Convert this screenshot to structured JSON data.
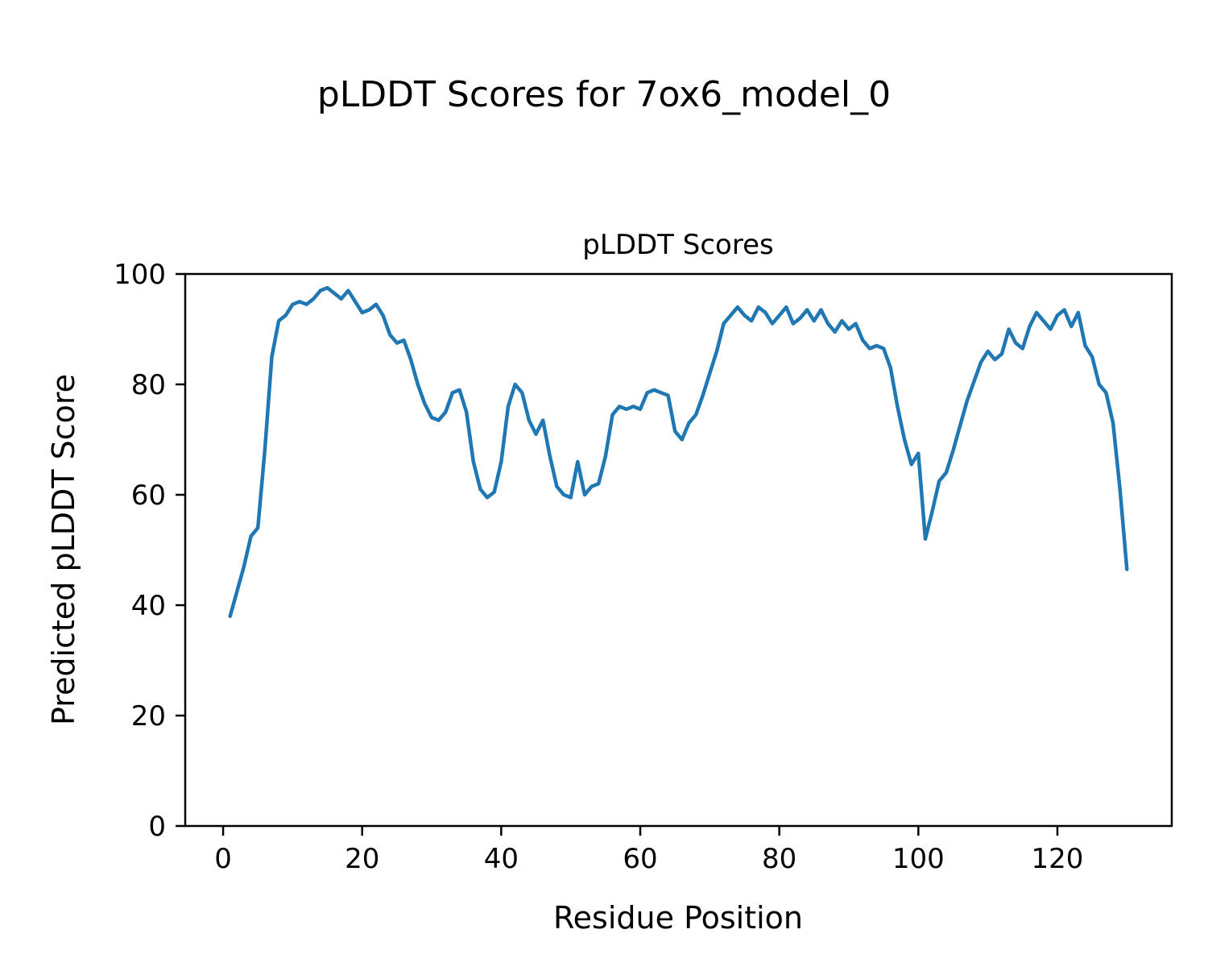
{
  "figure": {
    "title": "pLDDT Scores for 7ox6_model_0"
  },
  "chart_data": {
    "type": "line",
    "title": "pLDDT Scores",
    "xlabel": "Residue Position",
    "ylabel": "Predicted pLDDT Score",
    "x_ticks": [
      0,
      20,
      40,
      60,
      80,
      100,
      120
    ],
    "y_ticks": [
      0,
      20,
      40,
      60,
      80,
      100
    ],
    "xlim": [
      -5.45,
      136.45
    ],
    "ylim": [
      0,
      100
    ],
    "grid": false,
    "legend": "none",
    "line_color": "#1f77b4",
    "x_start": 1,
    "x_step": 1,
    "series": [
      {
        "name": "pLDDT",
        "values": [
          38,
          42.5,
          47,
          52.5,
          54,
          68,
          85,
          91.5,
          92.5,
          94.5,
          95,
          94.5,
          95.5,
          97,
          97.5,
          96.5,
          95.5,
          97,
          95,
          93,
          93.5,
          94.5,
          92.5,
          89,
          87.5,
          88,
          84.5,
          80,
          76.5,
          74,
          73.5,
          75,
          78.5,
          79,
          75,
          66,
          61,
          59.5,
          60.5,
          66,
          76,
          80,
          78.5,
          73.5,
          71,
          73.5,
          67,
          61.5,
          60,
          59.5,
          66,
          60,
          61.5,
          62,
          67,
          74.5,
          76,
          75.5,
          76,
          75.5,
          78.5,
          79,
          78.5,
          78,
          71.5,
          70,
          73,
          74.5,
          78,
          82,
          86,
          91,
          92.5,
          94,
          92.5,
          91.5,
          94,
          93,
          91,
          92.5,
          94,
          91,
          92,
          93.5,
          91.5,
          93.5,
          91,
          89.5,
          91.5,
          90,
          91,
          88,
          86.5,
          87,
          86.5,
          83,
          76,
          70,
          65.5,
          67.5,
          52,
          57,
          62.5,
          64,
          68,
          72.5,
          77,
          80.5,
          84,
          86,
          84.5,
          85.5,
          90,
          87.5,
          86.5,
          90.5,
          93,
          91.5,
          90,
          92.5,
          93.5,
          90.5,
          93,
          87,
          85,
          80,
          78.5,
          73,
          61,
          46.5
        ]
      }
    ]
  }
}
